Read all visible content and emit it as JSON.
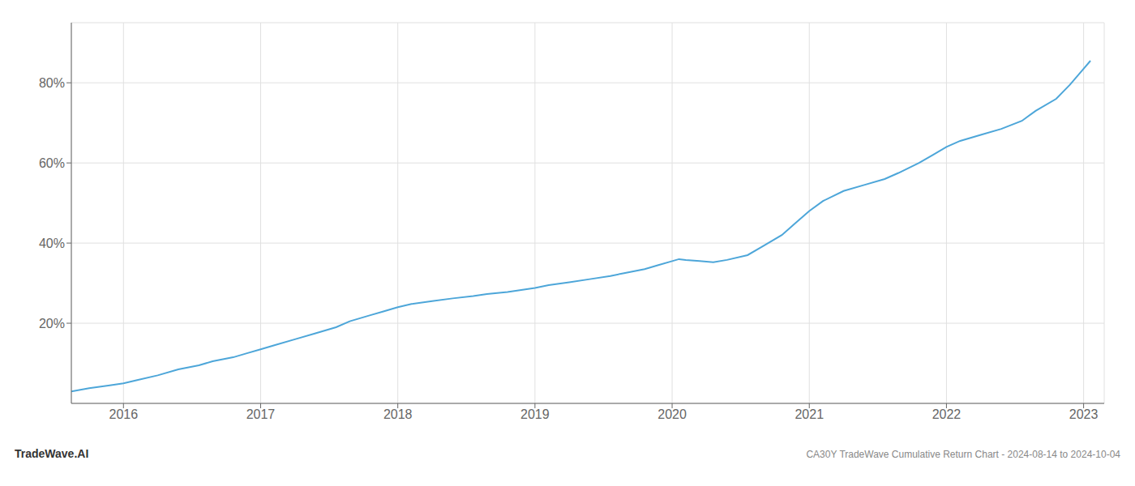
{
  "chart_data": {
    "type": "line",
    "title": "CA30Y TradeWave Cumulative Return Chart - 2024-08-14 to 2024-10-04",
    "annotations": [
      "TradeWave.AI"
    ],
    "color": "#4da6d9",
    "grid": true,
    "x": [
      2015.62,
      2015.75,
      2015.9,
      2016.0,
      2016.1,
      2016.25,
      2016.4,
      2016.55,
      2016.65,
      2016.8,
      2016.9,
      2017.0,
      2017.1,
      2017.25,
      2017.4,
      2017.55,
      2017.65,
      2017.8,
      2017.9,
      2018.0,
      2018.1,
      2018.25,
      2018.4,
      2018.55,
      2018.65,
      2018.8,
      2018.9,
      2019.0,
      2019.1,
      2019.25,
      2019.4,
      2019.55,
      2019.65,
      2019.8,
      2019.9,
      2020.0,
      2020.05,
      2020.1,
      2020.2,
      2020.3,
      2020.4,
      2020.55,
      2020.65,
      2020.8,
      2020.9,
      2021.0,
      2021.1,
      2021.25,
      2021.4,
      2021.55,
      2021.65,
      2021.8,
      2021.9,
      2022.0,
      2022.1,
      2022.25,
      2022.4,
      2022.55,
      2022.65,
      2022.8,
      2022.9,
      2023.0,
      2023.05
    ],
    "values": [
      3.0,
      3.8,
      4.5,
      5.0,
      5.8,
      7.0,
      8.5,
      9.5,
      10.5,
      11.5,
      12.5,
      13.5,
      14.5,
      16.0,
      17.5,
      19.0,
      20.5,
      22.0,
      23.0,
      24.0,
      24.8,
      25.5,
      26.2,
      26.8,
      27.3,
      27.8,
      28.3,
      28.8,
      29.5,
      30.2,
      31.0,
      31.8,
      32.5,
      33.5,
      34.5,
      35.5,
      36.0,
      35.8,
      35.5,
      35.2,
      35.8,
      37.0,
      39.0,
      42.0,
      45.0,
      48.0,
      50.5,
      53.0,
      54.5,
      56.0,
      57.5,
      60.0,
      62.0,
      64.0,
      65.5,
      67.0,
      68.5,
      70.5,
      73.0,
      76.0,
      79.5,
      83.5,
      85.5
    ],
    "xlim": [
      2015.62,
      2023.15
    ],
    "ylim": [
      0,
      95
    ],
    "xticks": [
      2016,
      2017,
      2018,
      2019,
      2020,
      2021,
      2022,
      2023
    ],
    "yticks": [
      {
        "value": 20,
        "label": "20%"
      },
      {
        "value": 40,
        "label": "40%"
      },
      {
        "value": 60,
        "label": "60%"
      },
      {
        "value": 80,
        "label": "80%"
      }
    ]
  }
}
